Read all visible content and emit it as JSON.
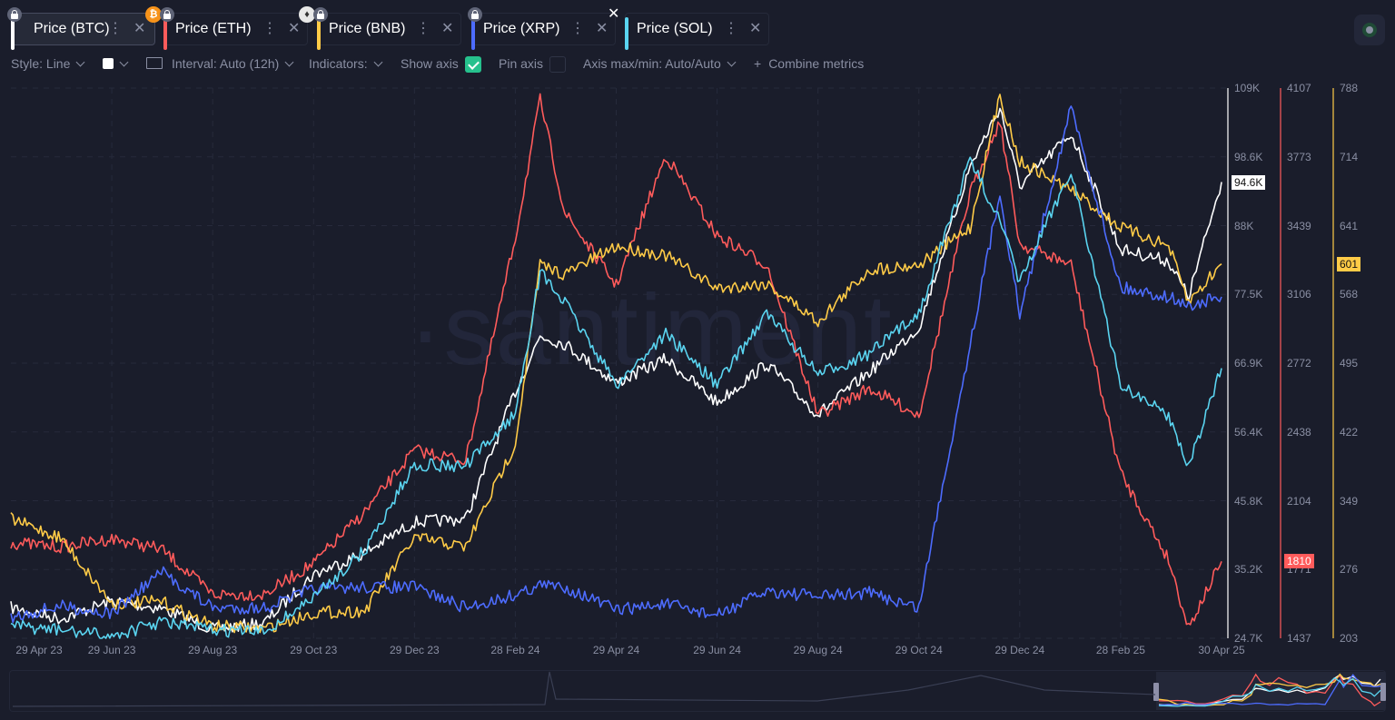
{
  "tabs": [
    {
      "label": "Price (BTC)",
      "color": "#ffffff",
      "active": true,
      "coin_icon": "bitcoin-icon",
      "coin_glyph": "₿",
      "coin_bg": "#f7931a",
      "coin_fg": "#ffffff"
    },
    {
      "label": "Price (ETH)",
      "color": "#ff5b5b",
      "active": false,
      "coin_icon": "ethereum-icon",
      "coin_glyph": "♦",
      "coin_bg": "#e8e8e8",
      "coin_fg": "#333333"
    },
    {
      "label": "Price (BNB)",
      "color": "#ffcb47",
      "active": false
    },
    {
      "label": "Price (XRP)",
      "color": "#4d6cff",
      "active": false
    },
    {
      "label": "Price (SOL)",
      "color": "#5ad4f0",
      "active": false
    }
  ],
  "toolbar": {
    "style": "Style: Line",
    "interval": "Interval: Auto (12h)",
    "indicators": "Indicators:",
    "show_axis": "Show axis",
    "show_axis_checked": true,
    "pin_axis": "Pin axis",
    "pin_axis_checked": false,
    "axis_maxmin": "Axis max/min: Auto/Auto",
    "combine": "Combine metrics"
  },
  "watermark": "·santiment",
  "chart_data": {
    "type": "line",
    "title": "",
    "x_range": [
      "29 Apr 23",
      "30 Apr 25"
    ],
    "x_ticks": [
      "29 Apr 23",
      "29 Jun 23",
      "29 Aug 23",
      "29 Oct 23",
      "29 Dec 23",
      "28 Feb 24",
      "29 Apr 24",
      "29 Jun 24",
      "29 Aug 24",
      "29 Oct 24",
      "29 Dec 24",
      "28 Feb 25",
      "30 Apr 25"
    ],
    "x": [
      "2023-04-29",
      "2023-05-29",
      "2023-06-29",
      "2023-07-29",
      "2023-08-29",
      "2023-09-29",
      "2023-10-29",
      "2023-11-29",
      "2023-12-29",
      "2024-01-29",
      "2024-02-28",
      "2024-03-14",
      "2024-03-29",
      "2024-04-29",
      "2024-05-29",
      "2024-06-29",
      "2024-07-29",
      "2024-08-29",
      "2024-09-29",
      "2024-10-29",
      "2024-11-29",
      "2024-12-17",
      "2024-12-29",
      "2025-01-29",
      "2025-02-28",
      "2025-03-29",
      "2025-04-10",
      "2025-04-30"
    ],
    "axes": [
      {
        "series": "Price (BTC)",
        "ticks": [
          "109K",
          "98.6K",
          "88K",
          "77.5K",
          "66.9K",
          "56.4K",
          "45.8K",
          "35.2K",
          "24.7K"
        ],
        "range": [
          24700,
          109000
        ],
        "current": "94.6K"
      },
      {
        "series": "Price (ETH)",
        "ticks": [
          "4107",
          "3773",
          "3439",
          "3106",
          "2772",
          "2438",
          "2104",
          "1771",
          "1437"
        ],
        "range": [
          1437,
          4107
        ],
        "current": "1810"
      },
      {
        "series": "Price (BNB)",
        "ticks": [
          "788",
          "714",
          "641",
          "568",
          "495",
          "422",
          "349",
          "276",
          "203"
        ],
        "range": [
          203,
          788
        ],
        "current": "601"
      }
    ],
    "series": [
      {
        "name": "Price (BTC)",
        "color": "#ffffff",
        "range": [
          24700,
          109000
        ],
        "values": [
          29400,
          27700,
          30400,
          29300,
          26100,
          27000,
          34500,
          37800,
          42500,
          43000,
          62500,
          71000,
          69800,
          63800,
          67500,
          60800,
          66800,
          59000,
          65500,
          72300,
          97000,
          106000,
          94000,
          102000,
          84300,
          82500,
          77000,
          94600
        ]
      },
      {
        "name": "Price (ETH)",
        "color": "#ff5b5b",
        "range": [
          1437,
          4107
        ],
        "values": [
          1900,
          1880,
          1920,
          1870,
          1650,
          1650,
          1800,
          2050,
          2350,
          2300,
          3380,
          4050,
          3500,
          3150,
          3780,
          3390,
          3250,
          2520,
          2650,
          2520,
          3600,
          3950,
          3350,
          3250,
          2240,
          1820,
          1490,
          1810
        ]
      },
      {
        "name": "Price (BNB)",
        "color": "#ffcb47",
        "range": [
          203,
          788
        ],
        "values": [
          330,
          310,
          240,
          242,
          216,
          213,
          230,
          232,
          310,
          300,
          410,
          600,
          590,
          620,
          610,
          575,
          580,
          540,
          595,
          600,
          640,
          780,
          710,
          680,
          640,
          620,
          560,
          601
        ]
      },
      {
        "name": "Price (XRP)",
        "color": "#4d6cff",
        "range": [
          0.35,
          3.25
        ],
        "values": [
          0.46,
          0.52,
          0.48,
          0.7,
          0.51,
          0.51,
          0.61,
          0.62,
          0.62,
          0.51,
          0.58,
          0.63,
          0.62,
          0.5,
          0.53,
          0.47,
          0.6,
          0.57,
          0.59,
          0.51,
          1.9,
          2.7,
          2.05,
          3.15,
          2.2,
          2.15,
          2.1,
          2.15
        ]
      },
      {
        "name": "Price (SOL)",
        "color": "#5ad4f0",
        "range": [
          16,
          285
        ],
        "values": [
          22,
          20,
          17,
          24,
          20,
          19,
          36,
          59,
          101,
          100,
          126,
          195,
          180,
          140,
          165,
          140,
          175,
          145,
          155,
          175,
          250,
          220,
          190,
          245,
          140,
          125,
          100,
          148
        ]
      }
    ]
  }
}
